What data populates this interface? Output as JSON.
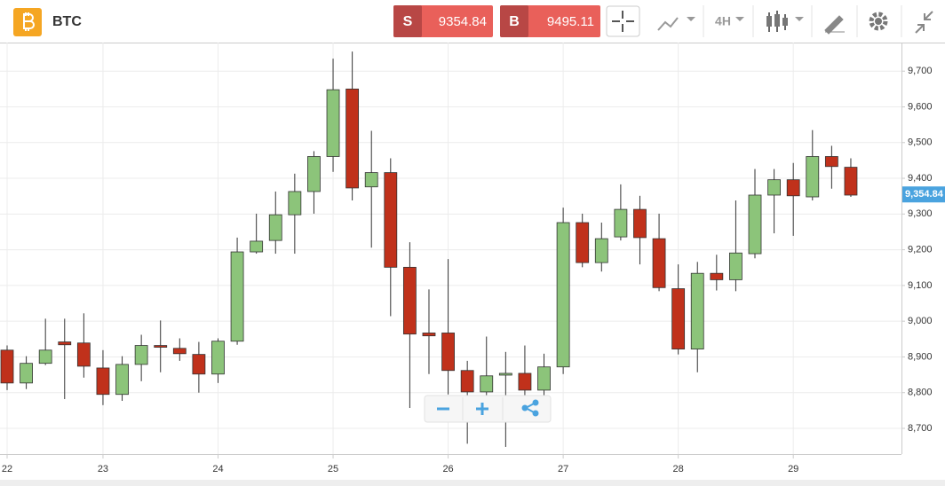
{
  "toolbar": {
    "symbol": "BTC",
    "sell": {
      "label": "S",
      "price": 9354.84
    },
    "buy": {
      "label": "B",
      "price": 9495.11
    },
    "interval": "4H"
  },
  "chart_data": {
    "type": "candlestick",
    "categories": [
      "22",
      null,
      null,
      null,
      null,
      "23",
      null,
      null,
      null,
      null,
      null,
      "24",
      null,
      null,
      null,
      null,
      null,
      "25",
      null,
      null,
      null,
      null,
      null,
      "26",
      null,
      null,
      null,
      null,
      null,
      "27",
      null,
      null,
      null,
      null,
      null,
      "28",
      null,
      null,
      null,
      null,
      null,
      "29",
      null,
      null,
      null
    ],
    "open": [
      8919,
      8827,
      8882,
      8942,
      8939,
      8869,
      8795,
      8879,
      8932,
      8924,
      8907,
      8852,
      8944,
      9194,
      9226,
      9298,
      9363,
      9461,
      9650,
      9376,
      9416,
      9151,
      8967,
      8967,
      8862,
      8802,
      8849,
      8854,
      8807,
      8872,
      9276,
      9164,
      9236,
      9313,
      9231,
      9091,
      8922,
      9134,
      9116,
      9189,
      9353,
      9396,
      9348,
      9461,
      9431
    ],
    "high": [
      8932,
      8902,
      9007,
      9007,
      9022,
      8919,
      8902,
      8962,
      9002,
      8952,
      8942,
      8952,
      9234,
      9301,
      9363,
      9413,
      9476,
      9735,
      9755,
      9533,
      9456,
      9221,
      9089,
      9174,
      8889,
      8957,
      8914,
      8932,
      8909,
      9318,
      9301,
      9276,
      9383,
      9351,
      9301,
      9159,
      9166,
      9186,
      9338,
      9426,
      9426,
      9443,
      9535,
      9491,
      9456
    ],
    "low": [
      8807,
      8810,
      8877,
      8782,
      8842,
      8765,
      8777,
      8832,
      8857,
      8889,
      8800,
      8827,
      8934,
      9189,
      9189,
      9189,
      9301,
      9418,
      9338,
      9206,
      9014,
      8757,
      8852,
      8795,
      8657,
      8760,
      8648,
      8777,
      8790,
      8852,
      9151,
      9139,
      9226,
      9159,
      9084,
      8907,
      8857,
      9086,
      9084,
      9176,
      9246,
      9239,
      9338,
      9371,
      9348
    ],
    "close": [
      8827,
      8882,
      8919,
      8934,
      8874,
      8795,
      8879,
      8932,
      8927,
      8909,
      8852,
      8944,
      9194,
      9224,
      9298,
      9363,
      9461,
      9648,
      9373,
      9416,
      9151,
      8964,
      8959,
      8862,
      8802,
      8847,
      8854,
      8807,
      8872,
      9276,
      9164,
      9231,
      9313,
      9234,
      9094,
      8922,
      9134,
      9116,
      9191,
      9353,
      9396,
      9351,
      9461,
      9433,
      9353
    ],
    "up_color": "#8cc47a",
    "down_color": "#c0311b",
    "ylim": [
      8628,
      9780
    ],
    "yticks": [
      {
        "value": 8700,
        "label": "8,700"
      },
      {
        "value": 8800,
        "label": "8,800"
      },
      {
        "value": 8900,
        "label": "8,900"
      },
      {
        "value": 9000,
        "label": "9,000"
      },
      {
        "value": 9100,
        "label": "9,100"
      },
      {
        "value": 9200,
        "label": "9,200"
      },
      {
        "value": 9300,
        "label": "9,300"
      },
      {
        "value": 9400,
        "label": "9,400"
      },
      {
        "value": 9500,
        "label": "9,500"
      },
      {
        "value": 9600,
        "label": "9,600"
      },
      {
        "value": 9700,
        "label": "9,700"
      }
    ],
    "last_price": {
      "value": 9354.84,
      "label": "9,354.84"
    },
    "grid": true
  }
}
